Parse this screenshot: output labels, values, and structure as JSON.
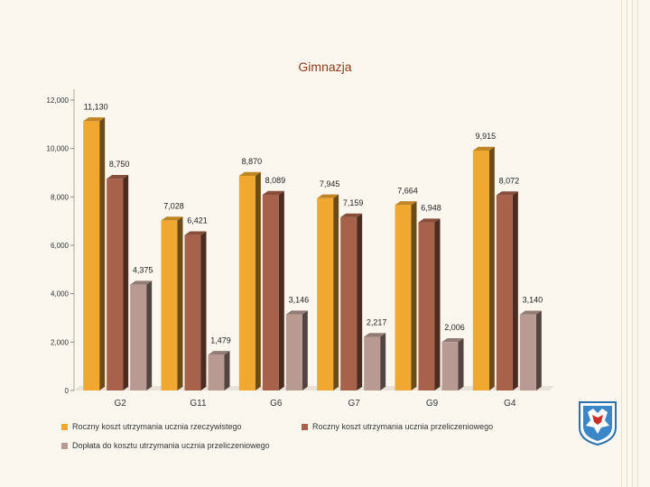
{
  "chart_data": {
    "type": "bar",
    "title": "Gimnazja",
    "categories": [
      "G2",
      "G11",
      "G6",
      "G7",
      "G9",
      "G4"
    ],
    "series": [
      {
        "name": "Roczny koszt utrzymania ucznia rzeczywistego",
        "color": "#f0a830",
        "values": [
          11130,
          7028,
          8870,
          7945,
          7664,
          9915
        ],
        "labels": [
          "11,130",
          "7,028",
          "8,870",
          "7,945",
          "7,664",
          "9,915"
        ]
      },
      {
        "name": "Roczny koszt utrzymania ucznia przeliczeniowego",
        "color": "#a8614a",
        "values": [
          8750,
          6421,
          8089,
          7159,
          6948,
          8072
        ],
        "labels": [
          "8,750",
          "6,421",
          "8,089",
          "7,159",
          "6,948",
          "8,072"
        ]
      },
      {
        "name": "Dopłata do kosztu utrzymania ucznia przeliczeniowego",
        "color": "#b89a92",
        "values": [
          4375,
          1479,
          3146,
          2217,
          2006,
          3140
        ],
        "labels": [
          "4,375",
          "1,479",
          "3,146",
          "2,217",
          "2,006",
          "3,140"
        ]
      }
    ],
    "ylim": [
      0,
      12000
    ],
    "yticks": [
      0,
      2000,
      4000,
      6000,
      8000,
      10000,
      12000
    ],
    "ytick_labels": [
      "0",
      "2,000",
      "4,000",
      "6,000",
      "8,000",
      "10,000",
      "12,000"
    ],
    "xlabel": "",
    "ylabel": "",
    "legend_position": "bottom",
    "grid": false
  }
}
